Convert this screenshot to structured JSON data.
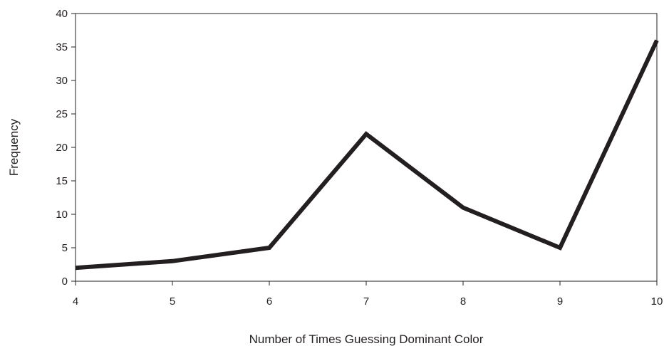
{
  "chart_data": {
    "type": "line",
    "title": "",
    "xlabel": "Number of Times Guessing Dominant Color",
    "ylabel": "Frequency",
    "x": [
      4,
      5,
      6,
      7,
      8,
      9,
      10
    ],
    "series": [
      {
        "values": [
          2,
          3,
          5,
          22,
          11,
          5,
          36
        ]
      }
    ],
    "xlim": [
      4,
      10
    ],
    "ylim": [
      0,
      40
    ],
    "xticks": [
      "4",
      "5",
      "6",
      "7",
      "8",
      "9",
      "10"
    ],
    "yticks": [
      "0",
      "5",
      "10",
      "15",
      "20",
      "25",
      "30",
      "35",
      "40"
    ],
    "grid": false,
    "legend": "none",
    "line_color": "#231f20"
  }
}
